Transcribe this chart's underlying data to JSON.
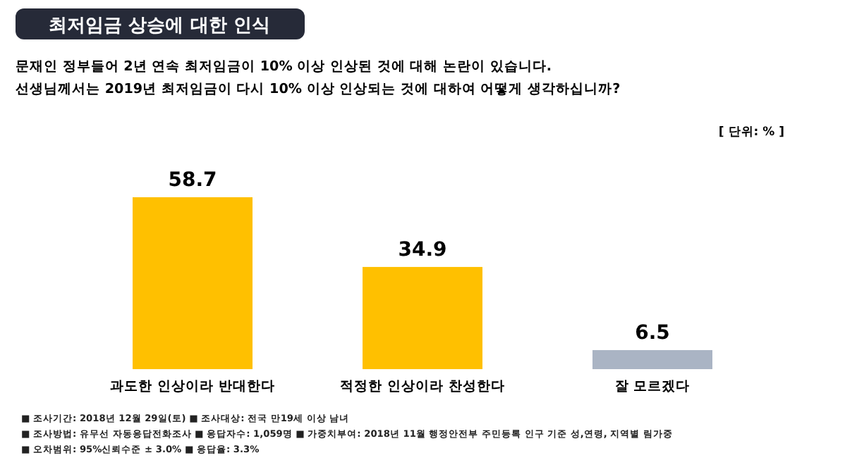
{
  "chart_data": {
    "type": "bar",
    "title": "최저임금 상승에 대한 인식",
    "subtitle": "문재인 정부들어 2년 연속 최저임금이 10% 이상 인상된 것에 대해 논란이 있습니다.\n선생님께서는 2019년 최저임금이 다시 10% 이상 인상되는 것에 대하여 어떻게 생각하십니까?",
    "categories": [
      "과도한 인상이라 반대한다",
      "적정한 인상이라 찬성한다",
      "잘 모르겠다"
    ],
    "values": [
      58.7,
      34.9,
      6.5
    ],
    "colors": [
      "#ffc000",
      "#ffc000",
      "#aab4c4"
    ],
    "data_labels": true,
    "annotations": [
      "[ 단위: % ]",
      "■ 조사기간: 2018년 12월 29일(토) ■ 조사대상: 전국 만19세 이상 남녀",
      "■ 조사방법: 유무선 자동응답전화조사 ■ 응답자수: 1,059명 ■ 가중치부여: 2018년 11월 행정안전부 주민등록 인구 기준 성,연령, 지역별 림가중",
      "■ 오차범위: 95%신뢰수준 ± 3.0% ■ 응답율: 3.3%"
    ]
  }
}
